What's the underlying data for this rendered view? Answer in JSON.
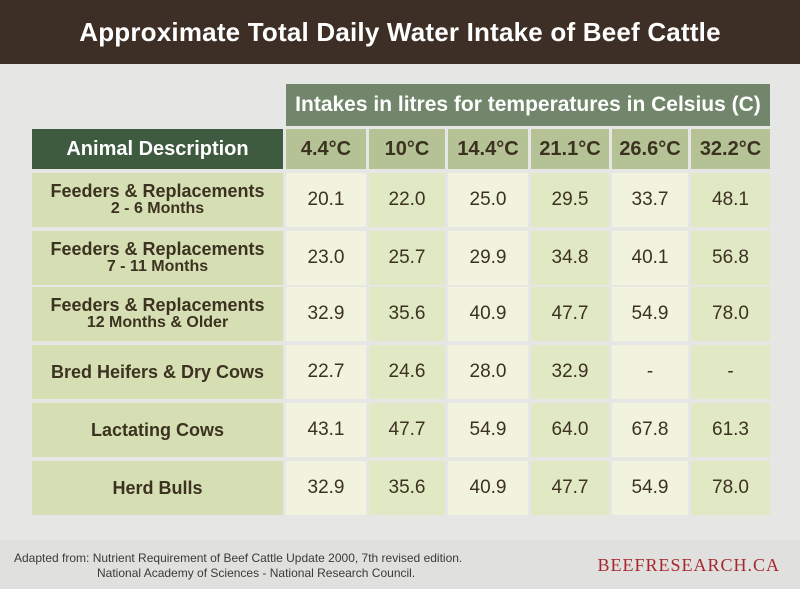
{
  "title": "Approximate Total Daily Water Intake of Beef Cattle",
  "chart_data": {
    "type": "table",
    "title": "Approximate Total Daily Water Intake of Beef Cattle",
    "header_group": "Intakes in litres for temperatures in Celsius (C)",
    "row_header": "Animal Description",
    "columns": [
      "4.4°C",
      "10°C",
      "14.4°C",
      "21.1°C",
      "26.6°C",
      "32.2°C"
    ],
    "rows": [
      {
        "label": [
          "Feeders & Replacements",
          "2 - 6 Months"
        ],
        "values": [
          "20.1",
          "22.0",
          "25.0",
          "29.5",
          "33.7",
          "48.1"
        ]
      },
      {
        "label": [
          "Feeders & Replacements",
          "7 - 11 Months"
        ],
        "values": [
          "23.0",
          "25.7",
          "29.9",
          "34.8",
          "40.1",
          "56.8"
        ]
      },
      {
        "label": [
          "Feeders & Replacements",
          "12 Months & Older"
        ],
        "values": [
          "32.9",
          "35.6",
          "40.9",
          "47.7",
          "54.9",
          "78.0"
        ]
      },
      {
        "label": [
          "Bred Heifers & Dry Cows"
        ],
        "values": [
          "22.7",
          "24.6",
          "28.0",
          "32.9",
          "-",
          "-"
        ]
      },
      {
        "label": [
          "Lactating Cows"
        ],
        "values": [
          "43.1",
          "47.7",
          "54.9",
          "64.0",
          "67.8",
          "61.3"
        ]
      },
      {
        "label": [
          "Herd Bulls"
        ],
        "values": [
          "32.9",
          "35.6",
          "40.9",
          "47.7",
          "54.9",
          "78.0"
        ]
      }
    ]
  },
  "footer": {
    "source_line1": "Adapted from: Nutrient Requirement of Beef Cattle Update 2000, 7th revised edition.",
    "source_line2": "National Academy of Sciences - National Research Council.",
    "brand": "BEEFRESEARCH.CA"
  },
  "colors": {
    "title_bg": "#3d2f26",
    "header_green": "#71866a",
    "dark_green": "#3e5a3f",
    "brand_red": "#a6282d"
  }
}
